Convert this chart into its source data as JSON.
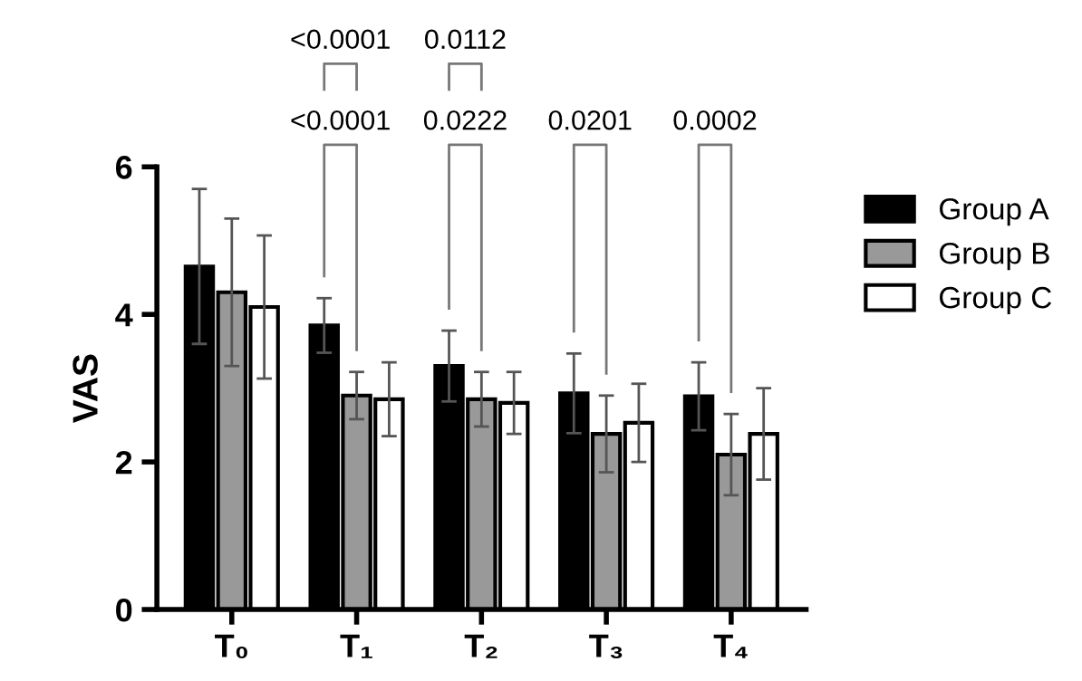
{
  "chart_data": {
    "type": "bar",
    "ylabel": "VAS",
    "categories": [
      "T₀",
      "T₁",
      "T₂",
      "T₃",
      "T₄"
    ],
    "series": [
      {
        "name": "Group A",
        "color": "#000000",
        "values": [
          4.65,
          3.85,
          3.3,
          2.93,
          2.89
        ],
        "errors": [
          1.05,
          0.37,
          0.48,
          0.54,
          0.46
        ]
      },
      {
        "name": "Group B",
        "color": "#999999",
        "values": [
          4.3,
          2.9,
          2.85,
          2.38,
          2.1
        ],
        "errors": [
          1.0,
          0.32,
          0.37,
          0.52,
          0.55
        ]
      },
      {
        "name": "Group C",
        "color": "#ffffff",
        "values": [
          4.1,
          2.85,
          2.8,
          2.53,
          2.38
        ],
        "errors": [
          0.97,
          0.5,
          0.42,
          0.53,
          0.62
        ]
      }
    ],
    "annotations": [
      "<0.0001",
      "0.0222",
      "0.0201",
      "0.0002",
      "<0.0001",
      "0.0112"
    ],
    "ylim": [
      0,
      6
    ],
    "yticks": [
      0,
      2,
      4,
      6
    ],
    "grid": false,
    "legend": "right"
  }
}
